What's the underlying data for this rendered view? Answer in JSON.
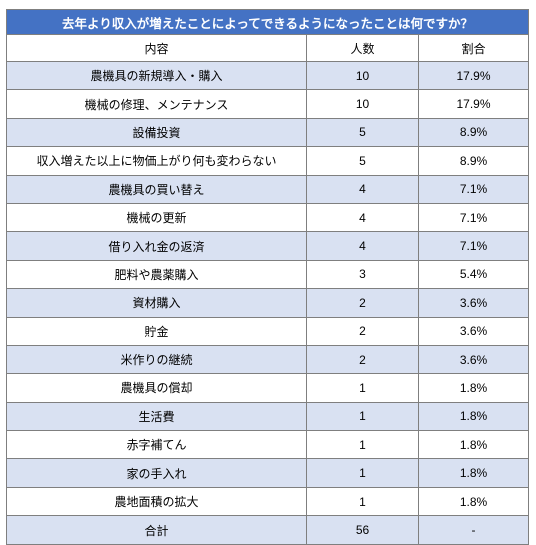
{
  "table": {
    "title": "去年より収入が増えたことによってできるようになったことは何ですか？",
    "headers": [
      "内容",
      "人数",
      "割合"
    ],
    "rows": [
      {
        "item": "農機具の新規導入・購入",
        "count": "10",
        "percent": "17.9%"
      },
      {
        "item": "機械の修理、メンテナンス",
        "count": "10",
        "percent": "17.9%"
      },
      {
        "item": "設備投資",
        "count": "5",
        "percent": "8.9%"
      },
      {
        "item": "収入増えた以上に物価上がり何も変わらない",
        "count": "5",
        "percent": "8.9%"
      },
      {
        "item": "農機具の買い替え",
        "count": "4",
        "percent": "7.1%"
      },
      {
        "item": "機械の更新",
        "count": "4",
        "percent": "7.1%"
      },
      {
        "item": "借り入れ金の返済",
        "count": "4",
        "percent": "7.1%"
      },
      {
        "item": "肥料や農薬購入",
        "count": "3",
        "percent": "5.4%"
      },
      {
        "item": "資材購入",
        "count": "2",
        "percent": "3.6%"
      },
      {
        "item": "貯金",
        "count": "2",
        "percent": "3.6%"
      },
      {
        "item": "米作りの継続",
        "count": "2",
        "percent": "3.6%"
      },
      {
        "item": "農機具の償却",
        "count": "1",
        "percent": "1.8%"
      },
      {
        "item": "生活費",
        "count": "1",
        "percent": "1.8%"
      },
      {
        "item": "赤字補てん",
        "count": "1",
        "percent": "1.8%"
      },
      {
        "item": "家の手入れ",
        "count": "1",
        "percent": "1.8%"
      },
      {
        "item": "農地面積の拡大",
        "count": "1",
        "percent": "1.8%"
      }
    ],
    "total": {
      "item": "合計",
      "count": "56",
      "percent": "-"
    }
  },
  "colors": {
    "title_bg": "#4472c4",
    "title_text": "#ffffff",
    "shaded_row": "#d9e1f2",
    "border": "#7f7f7f"
  }
}
